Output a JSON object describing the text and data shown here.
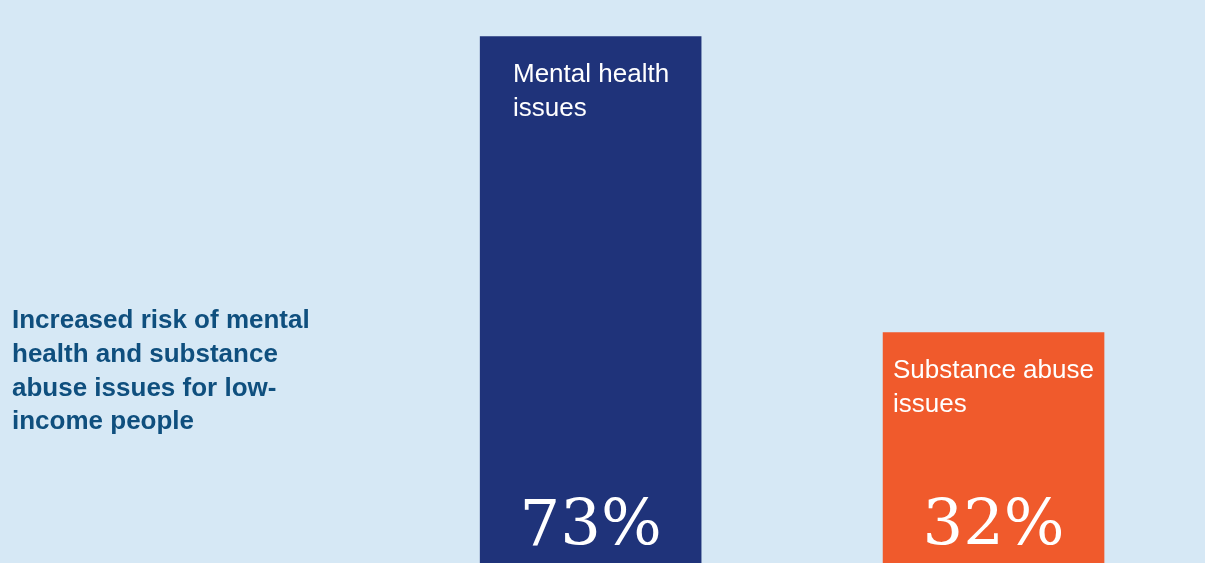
{
  "chart_data": {
    "type": "bar",
    "title": "Increased risk of mental health and substance abuse issues for low-income people",
    "categories": [
      "Mental health issues",
      "Substance abuse issues"
    ],
    "values": [
      73,
      32
    ],
    "colors": [
      "#1f337a",
      "#f05a2c"
    ],
    "value_labels": [
      "73%",
      "32%"
    ]
  }
}
